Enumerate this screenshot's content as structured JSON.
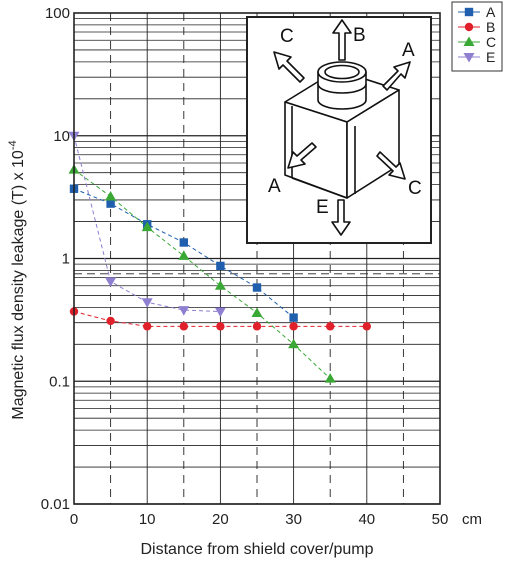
{
  "chart_data": {
    "type": "line",
    "title": "",
    "xlabel": "Distance from shield cover/pump",
    "x_unit": "cm",
    "ylabel": "Magnetic flux density leakage (T) x 10",
    "ylabel_exponent": "-4",
    "xlim": [
      0,
      50
    ],
    "ylim": [
      0.01,
      100
    ],
    "y_scale": "log",
    "x_ticks": [
      "0",
      "10",
      "20",
      "30",
      "40",
      "50"
    ],
    "y_ticks": [
      "0.01",
      "0.1",
      "1",
      "10",
      "100"
    ],
    "reference_line_y": 0.75,
    "grid": true,
    "legend_position": "top-right outside",
    "series": [
      {
        "name": "A",
        "color": "#1f5fad",
        "marker": "square",
        "x": [
          0,
          5,
          10,
          15,
          20,
          25,
          30
        ],
        "y": [
          3.7,
          2.8,
          1.9,
          1.35,
          0.87,
          0.58,
          0.33
        ]
      },
      {
        "name": "B",
        "color": "#e0202a",
        "marker": "circle",
        "x": [
          0,
          5,
          10,
          15,
          20,
          25,
          30,
          35,
          40
        ],
        "y": [
          0.37,
          0.31,
          0.28,
          0.28,
          0.28,
          0.28,
          0.28,
          0.28,
          0.28
        ]
      },
      {
        "name": "C",
        "color": "#3aa835",
        "marker": "triangle-up",
        "x": [
          0,
          5,
          10,
          15,
          20,
          25,
          30,
          35
        ],
        "y": [
          5.3,
          3.2,
          1.8,
          1.05,
          0.6,
          0.36,
          0.2,
          0.105
        ]
      },
      {
        "name": "E",
        "color": "#8f7fd1",
        "marker": "triangle-down",
        "x": [
          0,
          5,
          10,
          15,
          20
        ],
        "y": [
          10,
          0.65,
          0.44,
          0.38,
          0.37
        ]
      }
    ],
    "inset_labels": [
      "A",
      "B",
      "C",
      "A",
      "C",
      "E"
    ]
  }
}
